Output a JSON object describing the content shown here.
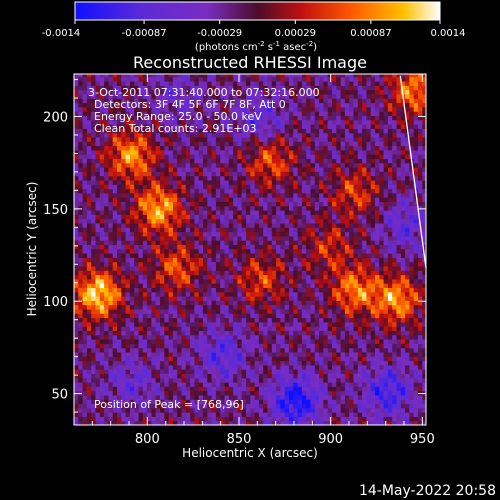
{
  "chart_data": {
    "type": "heatmap",
    "title": "Reconstructed RHESSI Image",
    "xlabel": "Heliocentric X (arcsec)",
    "ylabel": "Heliocentric Y (arcsec)",
    "xlim": [
      760,
      952
    ],
    "ylim": [
      33,
      223
    ],
    "x_ticks": [
      800,
      850,
      900,
      950
    ],
    "y_ticks": [
      50,
      100,
      150,
      200
    ],
    "colorbar": {
      "colormap": "red-temperature (blue-purple to red-yellow-white)",
      "range": [
        -0.0014,
        0.0014
      ],
      "tick_values": [
        -0.0014,
        -0.00087,
        -0.00029,
        0.00029,
        0.00087,
        0.0014
      ],
      "tick_labels": [
        "-0.0014",
        "-0.00087",
        "-0.00029",
        "0.00029",
        "0.00087",
        "0.0014"
      ],
      "units_label": "(photons cm",
      "units_parts": [
        "(photons cm",
        "-2",
        " s",
        "-1",
        " asec",
        "-2",
        ")"
      ]
    },
    "annotations": {
      "time_range": "3-Oct-2011 07:31:40.000 to 07:32:16.000",
      "detectors": "Detectors: 3F 4F 5F 6F 7F 8F, Att 0",
      "energy_range": "Energy Range: 25.0 - 50.0 keV",
      "algorithm": "Clean     Total counts: 2.91E+03",
      "peak": "Position of Peak = [768,96]"
    },
    "limb_line": {
      "from": [
        938,
        222
      ],
      "to": [
        952,
        118
      ]
    },
    "bright_regions": [
      {
        "x": 772,
        "y": 103,
        "value": 0.0014
      },
      {
        "x": 805,
        "y": 149,
        "value": 0.0012
      },
      {
        "x": 790,
        "y": 178,
        "value": 0.0011
      },
      {
        "x": 815,
        "y": 117,
        "value": 0.0008
      },
      {
        "x": 866,
        "y": 175,
        "value": 0.0008
      },
      {
        "x": 861,
        "y": 111,
        "value": 0.0007
      },
      {
        "x": 912,
        "y": 105,
        "value": 0.001
      },
      {
        "x": 935,
        "y": 100,
        "value": 0.0011
      },
      {
        "x": 944,
        "y": 213,
        "value": 0.001
      },
      {
        "x": 912,
        "y": 158,
        "value": 0.0007
      },
      {
        "x": 898,
        "y": 128,
        "value": 0.0006
      }
    ],
    "dim_regions": [
      {
        "x": 815,
        "y": 210,
        "value": -0.0004
      },
      {
        "x": 860,
        "y": 198,
        "value": -0.0006
      },
      {
        "x": 840,
        "y": 70,
        "value": -0.0007
      },
      {
        "x": 880,
        "y": 45,
        "value": -0.0012
      },
      {
        "x": 930,
        "y": 50,
        "value": -0.0009
      },
      {
        "x": 940,
        "y": 140,
        "value": -0.0006
      },
      {
        "x": 790,
        "y": 55,
        "value": -0.0005
      }
    ]
  },
  "footer": {
    "timestamp": "14-May-2022 20:58"
  }
}
